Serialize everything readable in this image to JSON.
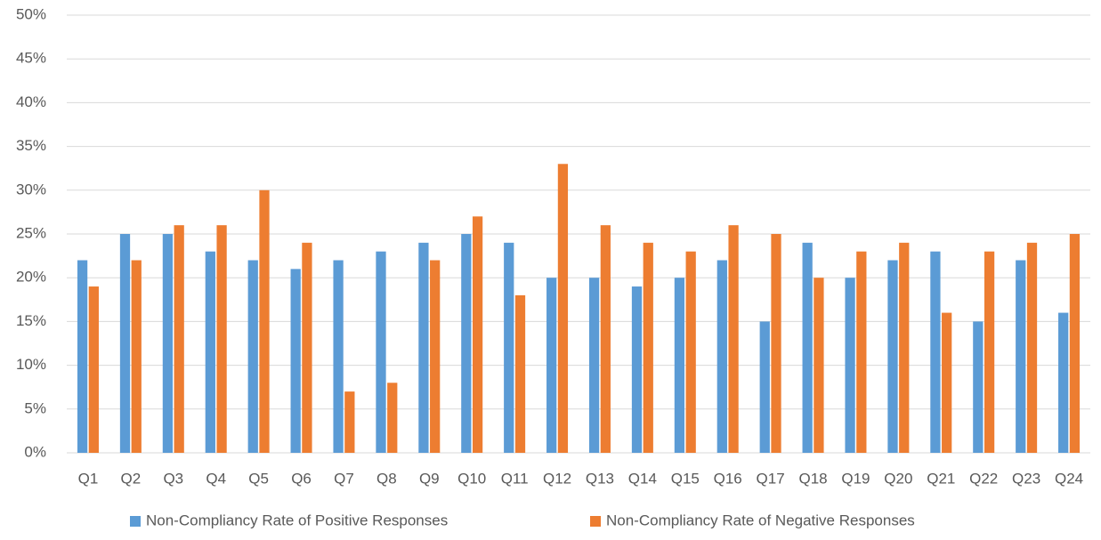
{
  "chart_data": {
    "type": "bar",
    "categories": [
      "Q1",
      "Q2",
      "Q3",
      "Q4",
      "Q5",
      "Q6",
      "Q7",
      "Q8",
      "Q9",
      "Q10",
      "Q11",
      "Q12",
      "Q13",
      "Q14",
      "Q15",
      "Q16",
      "Q17",
      "Q18",
      "Q19",
      "Q20",
      "Q21",
      "Q22",
      "Q23",
      "Q24"
    ],
    "series": [
      {
        "name": "Non-Compliancy Rate of Positive Responses",
        "color": "#5b9bd5",
        "values": [
          22,
          25,
          25,
          23,
          22,
          21,
          22,
          23,
          24,
          25,
          24,
          20,
          20,
          19,
          20,
          22,
          15,
          24,
          20,
          22,
          23,
          15,
          22,
          16
        ]
      },
      {
        "name": "Non-Compliancy Rate of Negative Responses",
        "color": "#ed7d31",
        "values": [
          19,
          22,
          26,
          26,
          30,
          24,
          7,
          8,
          22,
          27,
          18,
          33,
          26,
          24,
          23,
          26,
          25,
          20,
          23,
          24,
          16,
          23,
          24,
          25
        ]
      }
    ],
    "ylim": [
      0,
      50
    ],
    "yticks": [
      {
        "value": 0,
        "label": "0%"
      },
      {
        "value": 5,
        "label": "5%"
      },
      {
        "value": 10,
        "label": "10%"
      },
      {
        "value": 15,
        "label": "15%"
      },
      {
        "value": 20,
        "label": "20%"
      },
      {
        "value": 25,
        "label": "25%"
      },
      {
        "value": 30,
        "label": "30%"
      },
      {
        "value": 35,
        "label": "35%"
      },
      {
        "value": 40,
        "label": "40%"
      },
      {
        "value": 45,
        "label": "45%"
      },
      {
        "value": 50,
        "label": "50%"
      }
    ],
    "grid": true,
    "legend": "bottom"
  }
}
